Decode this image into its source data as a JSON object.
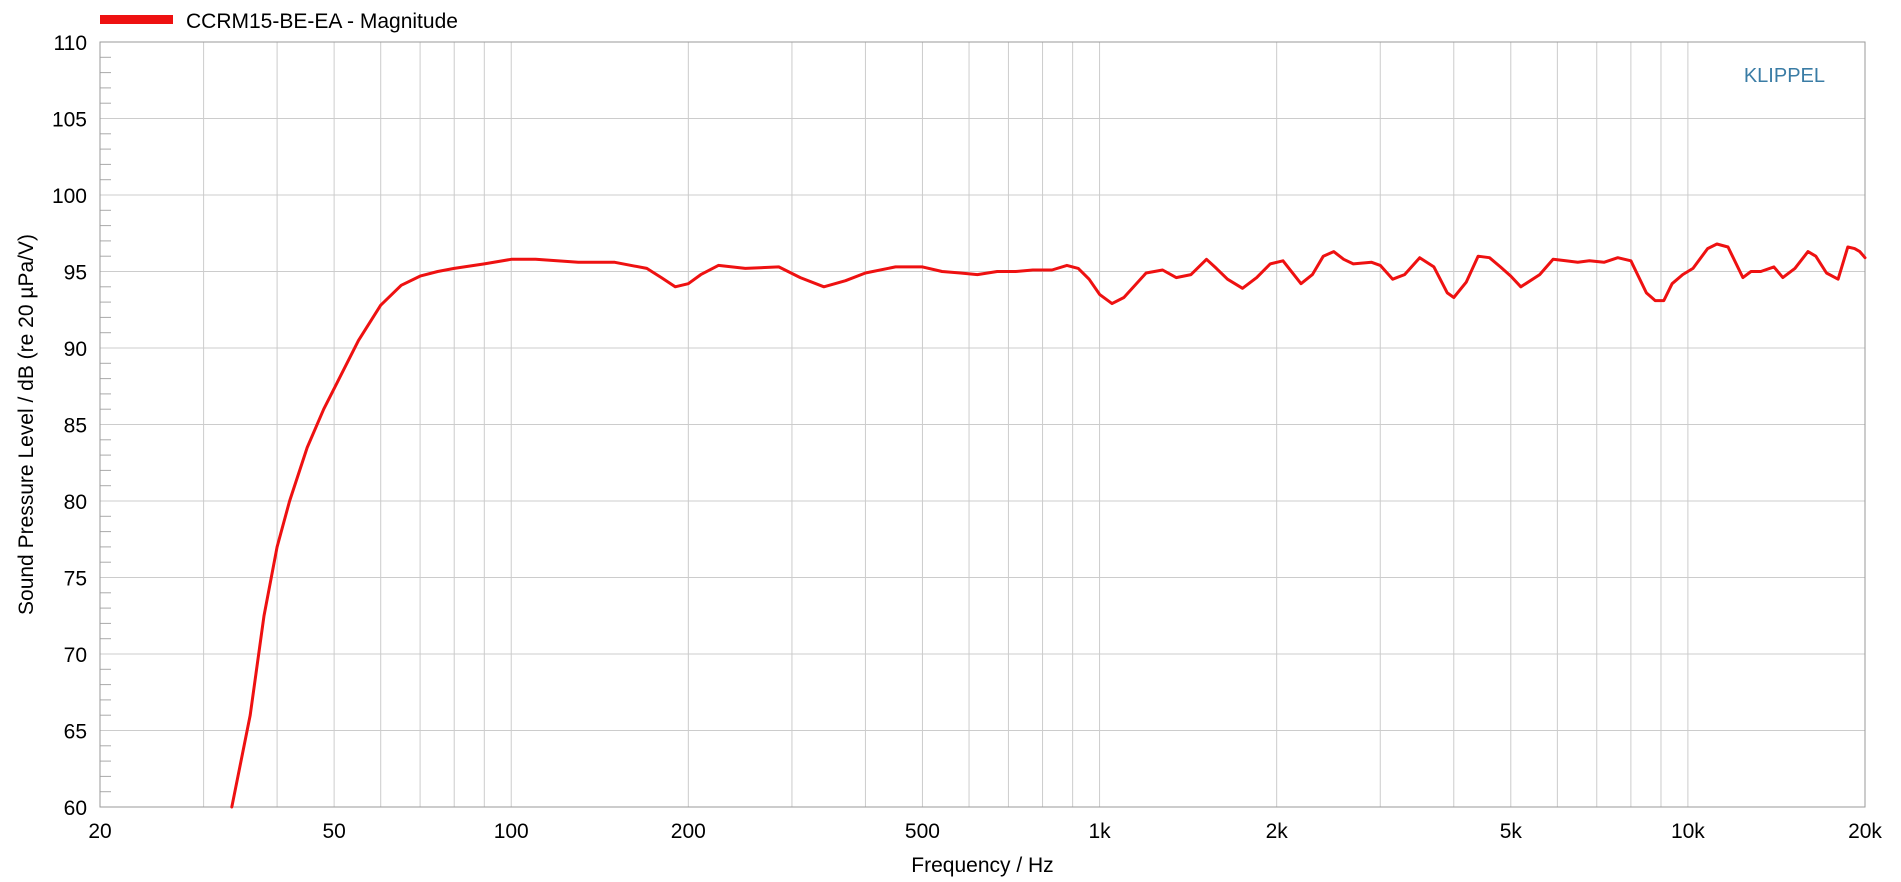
{
  "chart_data": {
    "type": "line",
    "title": "",
    "xlabel": "Frequency / Hz",
    "ylabel": "Sound Pressure Level / dB (re 20 µPa/V)",
    "x_scale": "log",
    "xlim": [
      20,
      20000
    ],
    "ylim": [
      60,
      110
    ],
    "grid": true,
    "legend_position": "top-left",
    "watermark": "KLIPPEL",
    "x_tick_values": [
      20,
      50,
      100,
      200,
      500,
      1000,
      2000,
      5000,
      10000,
      20000
    ],
    "x_tick_labels": [
      "20",
      "50",
      "100",
      "200",
      "500",
      "1k",
      "2k",
      "5k",
      "10k",
      "20k"
    ],
    "y_tick_values": [
      60,
      65,
      70,
      75,
      80,
      85,
      90,
      95,
      100,
      105,
      110
    ],
    "y_tick_labels": [
      "60",
      "65",
      "70",
      "75",
      "80",
      "85",
      "90",
      "95",
      "100",
      "105",
      "110"
    ],
    "series": [
      {
        "name": "CCRM15-BE-EA - Magnitude",
        "color": "#ee1111",
        "x": [
          33.5,
          36,
          38,
          40,
          42,
          45,
          48,
          51,
          55,
          60,
          65,
          70,
          75,
          80,
          90,
          100,
          110,
          130,
          150,
          170,
          180,
          190,
          200,
          210,
          225,
          250,
          285,
          310,
          340,
          370,
          400,
          450,
          500,
          540,
          580,
          620,
          670,
          720,
          770,
          830,
          880,
          920,
          960,
          1000,
          1050,
          1100,
          1200,
          1280,
          1350,
          1430,
          1520,
          1580,
          1650,
          1750,
          1850,
          1950,
          2050,
          2200,
          2300,
          2400,
          2500,
          2600,
          2700,
          2900,
          3000,
          3150,
          3300,
          3500,
          3700,
          3900,
          4000,
          4200,
          4400,
          4600,
          4800,
          5000,
          5200,
          5300,
          5600,
          5900,
          6200,
          6500,
          6800,
          7200,
          7600,
          8000,
          8500,
          8800,
          9100,
          9400,
          9800,
          10200,
          10800,
          11200,
          11700,
          12400,
          12800,
          13300,
          14000,
          14500,
          15200,
          16000,
          16500,
          17200,
          18000,
          18700,
          19200,
          19600,
          20000
        ],
        "y": [
          60,
          66,
          72.5,
          77,
          80,
          83.5,
          86,
          88,
          90.5,
          92.8,
          94.1,
          94.7,
          95,
          95.2,
          95.5,
          95.8,
          95.8,
          95.6,
          95.6,
          95.2,
          94.6,
          94,
          94.2,
          94.8,
          95.4,
          95.2,
          95.3,
          94.6,
          94,
          94.4,
          94.9,
          95.3,
          95.3,
          95,
          94.9,
          94.8,
          95,
          95,
          95.1,
          95.1,
          95.4,
          95.2,
          94.5,
          93.5,
          92.9,
          93.3,
          94.9,
          95.1,
          94.6,
          94.8,
          95.8,
          95.2,
          94.5,
          93.9,
          94.6,
          95.5,
          95.7,
          94.2,
          94.8,
          96,
          96.3,
          95.8,
          95.5,
          95.6,
          95.4,
          94.5,
          94.8,
          95.9,
          95.3,
          93.6,
          93.3,
          94.3,
          96,
          95.9,
          95.3,
          94.7,
          94,
          94.2,
          94.8,
          95.8,
          95.7,
          95.6,
          95.7,
          95.6,
          95.9,
          95.7,
          93.6,
          93.1,
          93.1,
          94.2,
          94.8,
          95.2,
          96.5,
          96.8,
          96.6,
          94.6,
          95,
          95,
          95.3,
          94.6,
          95.2,
          96.3,
          96,
          94.9,
          94.5,
          96.6,
          96.5,
          96.3,
          95.9
        ]
      }
    ]
  }
}
